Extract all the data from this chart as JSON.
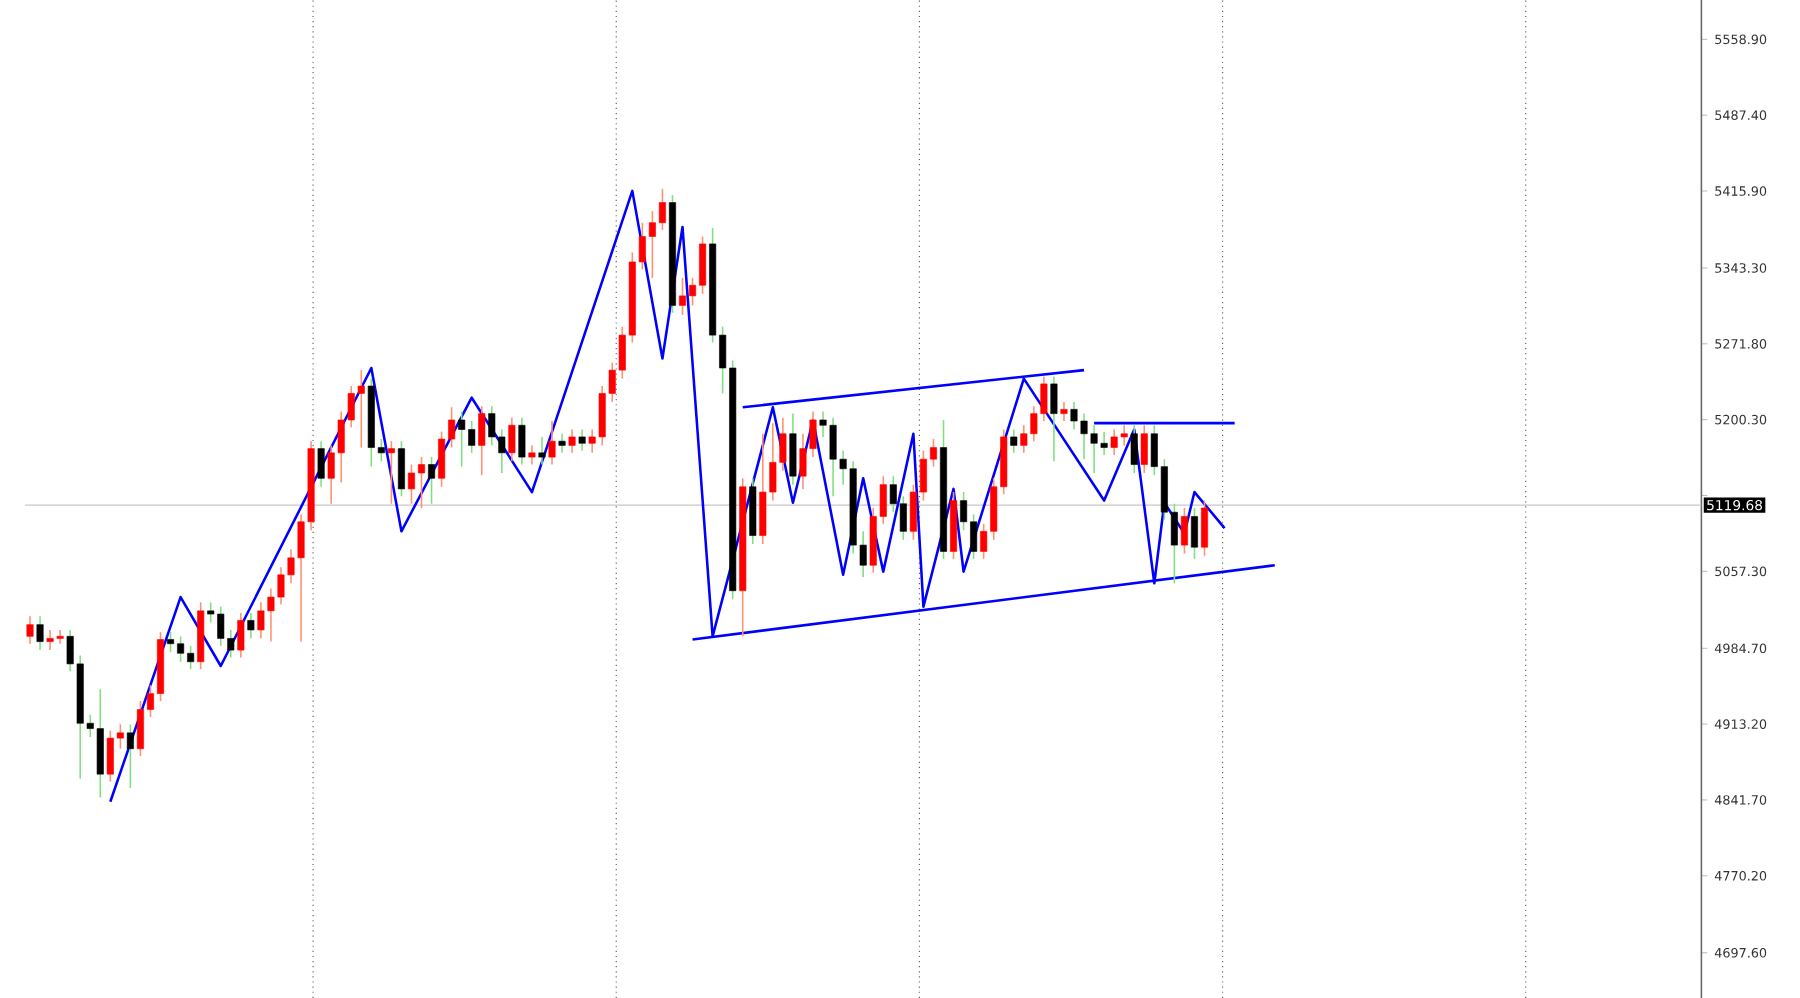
{
  "chart_data": {
    "type": "candlestick",
    "categories": [
      null,
      null,
      null,
      null,
      null,
      null,
      null,
      null,
      null,
      null,
      null,
      null,
      null,
      null,
      null,
      null,
      null,
      null,
      null,
      null,
      null,
      null,
      null,
      null,
      null,
      null,
      null,
      null,
      null,
      null,
      null,
      null,
      null,
      null,
      null,
      null,
      null,
      null,
      null,
      null,
      null,
      null,
      null,
      null,
      null,
      null,
      null,
      null,
      null,
      null,
      null,
      null,
      null,
      null,
      null,
      null,
      null,
      null,
      null,
      null,
      null,
      null,
      null,
      null,
      null,
      null,
      null,
      null,
      null,
      null,
      null,
      null,
      null,
      null,
      null,
      null,
      null,
      null,
      null,
      null,
      null,
      null,
      null,
      null,
      null,
      null,
      null,
      null,
      null,
      null,
      null,
      null,
      null,
      null,
      null,
      null,
      null,
      null,
      null,
      null,
      null,
      null,
      null,
      null,
      null,
      null,
      null,
      null,
      null,
      null,
      null,
      null,
      null,
      null,
      null,
      null,
      null,
      null,
      null,
      null,
      null,
      null,
      null,
      null,
      null,
      null,
      null,
      null,
      null,
      null,
      null,
      null,
      null,
      null,
      null,
      null,
      null,
      null,
      null,
      null,
      null,
      null,
      null,
      null,
      null,
      null,
      null,
      null,
      null,
      null,
      null,
      null,
      null,
      null,
      null,
      null,
      null,
      null,
      null,
      null,
      null,
      null,
      null,
      null,
      null,
      null,
      null
    ],
    "ohlc": [
      [
        4996,
        5015,
        4989,
        5007
      ],
      [
        5007,
        5015,
        4983,
        4991
      ],
      [
        4991,
        5002,
        4983,
        4994
      ],
      [
        4994,
        5002,
        4989,
        4996
      ],
      [
        4996,
        5002,
        4963,
        4970
      ],
      [
        4970,
        4978,
        4862,
        4914
      ],
      [
        4914,
        4922,
        4901,
        4909
      ],
      [
        4909,
        4946,
        4844,
        4866
      ],
      [
        4866,
        4907,
        4859,
        4900
      ],
      [
        4900,
        4913,
        4890,
        4905
      ],
      [
        4905,
        4913,
        4853,
        4890
      ],
      [
        4890,
        4935,
        4883,
        4927
      ],
      [
        4927,
        4950,
        4920,
        4942
      ],
      [
        4942,
        5000,
        4935,
        4993
      ],
      [
        4993,
        5000,
        4981,
        4989
      ],
      [
        4989,
        4996,
        4972,
        4980
      ],
      [
        4980,
        4987,
        4965,
        4972
      ],
      [
        4972,
        5028,
        4965,
        5020
      ],
      [
        5020,
        5028,
        5009,
        5017
      ],
      [
        5017,
        5024,
        4987,
        4994
      ],
      [
        4994,
        5002,
        4976,
        4983
      ],
      [
        4983,
        5018,
        4976,
        5011
      ],
      [
        5011,
        5018,
        4994,
        5002
      ],
      [
        5002,
        5028,
        4994,
        5020
      ],
      [
        5020,
        5041,
        4991,
        5033
      ],
      [
        5033,
        5061,
        5026,
        5054
      ],
      [
        5054,
        5078,
        5046,
        5070
      ],
      [
        5070,
        5111,
        4991,
        5104
      ],
      [
        5104,
        5180,
        5096,
        5173
      ],
      [
        5173,
        5180,
        5137,
        5145
      ],
      [
        5145,
        5176,
        5121,
        5169
      ],
      [
        5169,
        5208,
        5141,
        5200
      ],
      [
        5200,
        5232,
        5193,
        5225
      ],
      [
        5225,
        5247,
        5174,
        5232
      ],
      [
        5232,
        5239,
        5156,
        5174
      ],
      [
        5174,
        5182,
        5161,
        5169
      ],
      [
        5169,
        5180,
        5121,
        5173
      ],
      [
        5173,
        5180,
        5128,
        5135
      ],
      [
        5135,
        5158,
        5121,
        5150
      ],
      [
        5150,
        5165,
        5117,
        5158
      ],
      [
        5158,
        5165,
        5121,
        5145
      ],
      [
        5145,
        5189,
        5137,
        5182
      ],
      [
        5182,
        5212,
        5174,
        5200
      ],
      [
        5200,
        5208,
        5156,
        5191
      ],
      [
        5191,
        5199,
        5169,
        5176
      ],
      [
        5176,
        5213,
        5148,
        5206
      ],
      [
        5206,
        5213,
        5176,
        5184
      ],
      [
        5184,
        5191,
        5150,
        5169
      ],
      [
        5169,
        5202,
        5161,
        5195
      ],
      [
        5195,
        5202,
        5158,
        5165
      ],
      [
        5165,
        5176,
        5158,
        5169
      ],
      [
        5169,
        5184,
        5158,
        5165
      ],
      [
        5165,
        5199,
        5158,
        5180
      ],
      [
        5180,
        5187,
        5169,
        5176
      ],
      [
        5176,
        5191,
        5169,
        5184
      ],
      [
        5184,
        5191,
        5171,
        5178
      ],
      [
        5178,
        5191,
        5169,
        5184
      ],
      [
        5184,
        5232,
        5176,
        5225
      ],
      [
        5225,
        5254,
        5217,
        5247
      ],
      [
        5247,
        5288,
        5239,
        5280
      ],
      [
        5280,
        5358,
        5273,
        5349
      ],
      [
        5349,
        5386,
        5342,
        5373
      ],
      [
        5373,
        5397,
        5334,
        5386
      ],
      [
        5386,
        5418,
        5379,
        5405
      ],
      [
        5405,
        5412,
        5301,
        5308
      ],
      [
        5308,
        5334,
        5299,
        5317
      ],
      [
        5317,
        5334,
        5308,
        5327
      ],
      [
        5327,
        5373,
        5319,
        5366
      ],
      [
        5366,
        5381,
        5273,
        5280
      ],
      [
        5280,
        5288,
        5225,
        5249
      ],
      [
        5249,
        5256,
        5031,
        5039
      ],
      [
        5039,
        5145,
        4996,
        5137
      ],
      [
        5137,
        5145,
        5083,
        5091
      ],
      [
        5091,
        5187,
        5083,
        5132
      ],
      [
        5132,
        5197,
        5124,
        5160
      ],
      [
        5160,
        5202,
        5152,
        5187
      ],
      [
        5187,
        5206,
        5139,
        5147
      ],
      [
        5147,
        5187,
        5135,
        5173
      ],
      [
        5173,
        5208,
        5165,
        5200
      ],
      [
        5200,
        5208,
        5184,
        5195
      ],
      [
        5195,
        5202,
        5128,
        5163
      ],
      [
        5163,
        5171,
        5139,
        5154
      ],
      [
        5154,
        5161,
        5074,
        5082
      ],
      [
        5082,
        5095,
        5052,
        5063
      ],
      [
        5063,
        5117,
        5056,
        5109
      ],
      [
        5109,
        5147,
        5102,
        5139
      ],
      [
        5139,
        5147,
        5113,
        5121
      ],
      [
        5121,
        5128,
        5087,
        5095
      ],
      [
        5095,
        5139,
        5087,
        5132
      ],
      [
        5132,
        5171,
        5124,
        5163
      ],
      [
        5163,
        5182,
        5156,
        5174
      ],
      [
        5174,
        5200,
        5069,
        5076
      ],
      [
        5076,
        5132,
        5069,
        5124
      ],
      [
        5124,
        5132,
        5096,
        5104
      ],
      [
        5104,
        5111,
        5069,
        5076
      ],
      [
        5076,
        5102,
        5069,
        5095
      ],
      [
        5095,
        5145,
        5087,
        5137
      ],
      [
        5137,
        5191,
        5130,
        5184
      ],
      [
        5184,
        5191,
        5169,
        5176
      ],
      [
        5176,
        5195,
        5169,
        5187
      ],
      [
        5187,
        5213,
        5180,
        5206
      ],
      [
        5206,
        5241,
        5199,
        5234
      ],
      [
        5234,
        5241,
        5161,
        5206
      ],
      [
        5206,
        5217,
        5199,
        5210
      ],
      [
        5210,
        5217,
        5191,
        5199
      ],
      [
        5199,
        5206,
        5163,
        5187
      ],
      [
        5187,
        5195,
        5150,
        5178
      ],
      [
        5178,
        5189,
        5167,
        5174
      ],
      [
        5174,
        5191,
        5167,
        5184
      ],
      [
        5184,
        5195,
        5176,
        5187
      ],
      [
        5187,
        5195,
        5150,
        5158
      ],
      [
        5158,
        5195,
        5150,
        5187
      ],
      [
        5187,
        5195,
        5148,
        5156
      ],
      [
        5156,
        5163,
        5106,
        5113
      ],
      [
        5113,
        5121,
        5046,
        5082
      ],
      [
        5082,
        5117,
        5074,
        5109
      ],
      [
        5109,
        5117,
        5069,
        5080
      ],
      [
        5080,
        5124,
        5072,
        5117
      ],
      null,
      null,
      null,
      null,
      null,
      null,
      null,
      null,
      null,
      null,
      null,
      null,
      null,
      null,
      null,
      null,
      null,
      null,
      null,
      null,
      null,
      null,
      null,
      null,
      null,
      null,
      null,
      null,
      null,
      null,
      null,
      null,
      null,
      null,
      null,
      null,
      null,
      null,
      null,
      null,
      null,
      null,
      null,
      null,
      null,
      null,
      null,
      null,
      null
    ],
    "series": [
      {
        "type": "line",
        "color": "#0000ff",
        "values": [
          null,
          null,
          null,
          null,
          null,
          null,
          null,
          null,
          4840,
          null,
          null,
          null,
          null,
          null,
          null,
          5033,
          null,
          null,
          null,
          4968,
          null,
          null,
          null,
          null,
          null,
          null,
          null,
          null,
          null,
          null,
          null,
          null,
          null,
          null,
          5249,
          null,
          null,
          5095,
          null,
          null,
          null,
          null,
          null,
          null,
          5221,
          null,
          null,
          null,
          null,
          null,
          5132,
          null,
          null,
          null,
          null,
          null,
          null,
          null,
          null,
          null,
          5416,
          null,
          null,
          5258,
          null,
          5382,
          null,
          null,
          4996,
          null,
          null,
          null,
          null,
          null,
          5212,
          null,
          5122,
          null,
          5200,
          null,
          null,
          5054,
          null,
          5145,
          null,
          5057,
          null,
          null,
          5187,
          5024,
          null,
          null,
          5135,
          5057,
          null,
          null,
          null,
          null,
          null,
          5239,
          null,
          null,
          null,
          null,
          null,
          null,
          null,
          5124,
          null,
          null,
          5191,
          null,
          5046,
          5122,
          null,
          5093,
          5132,
          null,
          null,
          5098,
          null,
          null,
          null,
          null,
          null,
          null,
          null,
          null,
          null,
          null,
          null,
          null,
          null,
          null,
          null,
          null,
          null,
          null,
          null,
          null,
          null,
          null,
          null,
          null,
          null,
          null,
          null,
          null,
          null,
          null,
          null,
          null,
          null,
          null,
          null,
          null,
          null,
          null,
          null,
          null,
          null,
          null,
          null,
          null,
          null,
          null,
          null
        ]
      },
      {
        "type": "line",
        "color": "#0000ff",
        "values": [
          null,
          null,
          null,
          null,
          null,
          null,
          null,
          null,
          null,
          null,
          null,
          null,
          null,
          null,
          null,
          null,
          null,
          null,
          null,
          null,
          null,
          null,
          null,
          null,
          null,
          null,
          null,
          null,
          null,
          null,
          null,
          null,
          null,
          null,
          null,
          null,
          null,
          null,
          null,
          null,
          null,
          null,
          null,
          null,
          null,
          null,
          null,
          null,
          null,
          null,
          null,
          null,
          null,
          null,
          null,
          null,
          null,
          null,
          null,
          null,
          null,
          null,
          null,
          null,
          null,
          null,
          null,
          null,
          null,
          null,
          null,
          5212,
          null,
          null,
          null,
          null,
          null,
          null,
          null,
          null,
          null,
          null,
          null,
          null,
          null,
          null,
          null,
          null,
          null,
          null,
          null,
          null,
          null,
          null,
          null,
          null,
          null,
          null,
          null,
          null,
          null,
          null,
          null,
          null,
          null,
          5247,
          null,
          null,
          null,
          null,
          null,
          null,
          null,
          null,
          null,
          null,
          null,
          null,
          null,
          null,
          null,
          null,
          null,
          null,
          null,
          null,
          null,
          null,
          null,
          null,
          null,
          null,
          null,
          null,
          null,
          null,
          null,
          null,
          null,
          null,
          null,
          null,
          null,
          null,
          null,
          null,
          null,
          null,
          null,
          null,
          null,
          null,
          null,
          null,
          null,
          null,
          null,
          null,
          null,
          null,
          null,
          null,
          null,
          null,
          null,
          null,
          null
        ]
      },
      {
        "type": "line",
        "color": "#0000ff",
        "values": [
          null,
          null,
          null,
          null,
          null,
          null,
          null,
          null,
          null,
          null,
          null,
          null,
          null,
          null,
          null,
          null,
          null,
          null,
          null,
          null,
          null,
          null,
          null,
          null,
          null,
          null,
          null,
          null,
          null,
          null,
          null,
          null,
          null,
          null,
          null,
          null,
          null,
          null,
          null,
          null,
          null,
          null,
          null,
          null,
          null,
          null,
          null,
          null,
          null,
          null,
          null,
          null,
          null,
          null,
          null,
          null,
          null,
          null,
          null,
          null,
          null,
          null,
          null,
          null,
          null,
          null,
          4993,
          null,
          null,
          null,
          null,
          null,
          null,
          null,
          null,
          null,
          null,
          null,
          null,
          null,
          null,
          null,
          null,
          null,
          null,
          null,
          null,
          null,
          null,
          null,
          null,
          null,
          null,
          null,
          null,
          null,
          null,
          null,
          null,
          null,
          null,
          null,
          null,
          null,
          null,
          null,
          null,
          null,
          null,
          null,
          null,
          null,
          null,
          null,
          null,
          null,
          null,
          null,
          null,
          null,
          null,
          null,
          null,
          null,
          5063,
          null,
          null,
          null,
          null,
          null,
          null,
          null,
          null,
          null,
          null,
          null,
          null,
          null,
          null,
          null,
          null,
          null,
          null,
          null,
          null,
          null,
          null,
          null,
          null,
          null,
          null,
          null,
          null,
          null,
          null,
          null,
          null,
          null,
          null,
          null,
          null,
          null,
          null,
          null,
          null,
          null,
          null
        ]
      },
      {
        "type": "line",
        "color": "#0000ff",
        "values": [
          null,
          null,
          null,
          null,
          null,
          null,
          null,
          null,
          null,
          null,
          null,
          null,
          null,
          null,
          null,
          null,
          null,
          null,
          null,
          null,
          null,
          null,
          null,
          null,
          null,
          null,
          null,
          null,
          null,
          null,
          null,
          null,
          null,
          null,
          null,
          null,
          null,
          null,
          null,
          null,
          null,
          null,
          null,
          null,
          null,
          null,
          null,
          null,
          null,
          null,
          null,
          null,
          null,
          null,
          null,
          null,
          null,
          null,
          null,
          null,
          null,
          null,
          null,
          null,
          null,
          null,
          null,
          null,
          null,
          null,
          null,
          null,
          null,
          null,
          null,
          null,
          null,
          null,
          null,
          null,
          null,
          null,
          null,
          null,
          null,
          null,
          null,
          null,
          null,
          null,
          null,
          null,
          null,
          null,
          null,
          null,
          null,
          null,
          null,
          null,
          null,
          null,
          null,
          null,
          null,
          null,
          5197,
          null,
          null,
          null,
          null,
          null,
          null,
          null,
          null,
          null,
          null,
          null,
          null,
          null,
          5197,
          null,
          null,
          null,
          null,
          null,
          null,
          null,
          null,
          null,
          null,
          null,
          null,
          null,
          null,
          null,
          null,
          null,
          null,
          null,
          null,
          null,
          null,
          null,
          null,
          null,
          null,
          null,
          null,
          null,
          null,
          null,
          null,
          null,
          null,
          null,
          null,
          null,
          null,
          null,
          null,
          null,
          null,
          null,
          null,
          null,
          null
        ]
      }
    ],
    "ylim": [
      4655,
      5596
    ],
    "yticks": [
      {
        "value": 4697.6,
        "label": "4697.60"
      },
      {
        "value": 4770.2,
        "label": "4770.20"
      },
      {
        "value": 4841.7,
        "label": "4841.70"
      },
      {
        "value": 4913.2,
        "label": "4913.20"
      },
      {
        "value": 4984.7,
        "label": "4984.70"
      },
      {
        "value": 5057.3,
        "label": "5057.30"
      },
      {
        "value": 5128.8,
        "label": null
      },
      {
        "value": 5200.3,
        "label": "5200.30"
      },
      {
        "value": 5271.8,
        "label": "5271.80"
      },
      {
        "value": 5343.3,
        "label": "5343.30"
      },
      {
        "value": 5415.9,
        "label": "5415.90"
      },
      {
        "value": 5487.4,
        "label": "5487.40"
      },
      {
        "value": 5558.9,
        "label": "5558.90"
      }
    ],
    "ref_lines": [
      {
        "axis": "y",
        "value": 5119.68,
        "label": "5119.68",
        "color": "#c8c8c8"
      }
    ],
    "tick_labels": "y",
    "marker": "none",
    "line_style": "solid"
  }
}
